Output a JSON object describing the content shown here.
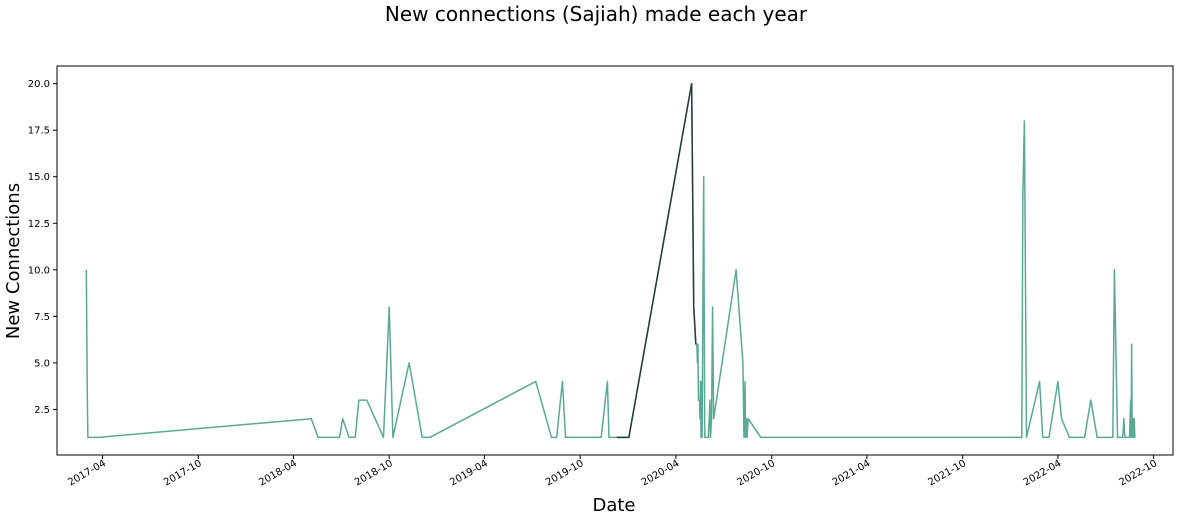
{
  "chart_data": {
    "type": "line",
    "title": "New connections (Sajiah) made each year",
    "xlabel": "Date",
    "ylabel": "New Connections",
    "x_range": [
      "2017-01-04",
      "2022-11-07"
    ],
    "ylim": [
      0.05,
      20.95
    ],
    "y_ticks": [
      2.5,
      5.0,
      7.5,
      10.0,
      12.5,
      15.0,
      17.5,
      20.0
    ],
    "y_tick_labels": [
      "2.5",
      "5.0",
      "7.5",
      "10.0",
      "12.5",
      "15.0",
      "17.5",
      "20.0"
    ],
    "x_ticks": [
      "2017-04-01",
      "2017-10-01",
      "2018-04-01",
      "2018-10-01",
      "2019-04-01",
      "2019-10-01",
      "2020-04-01",
      "2020-10-01",
      "2021-04-01",
      "2021-10-01",
      "2022-04-01",
      "2022-10-01"
    ],
    "x_tick_labels": [
      "2017-04",
      "2017-10",
      "2018-04",
      "2018-10",
      "2019-04",
      "2019-10",
      "2020-04",
      "2020-10",
      "2021-04",
      "2021-10",
      "2022-04",
      "2022-10"
    ],
    "grid": false,
    "line_color": "#5aa896",
    "highlight_color": "#283c37",
    "series": [
      {
        "points": [
          [
            "2017-03-01",
            10
          ],
          [
            "2017-03-03",
            3
          ],
          [
            "2017-03-04",
            1
          ],
          [
            "2017-03-25",
            1
          ],
          [
            "2018-05-05",
            2
          ],
          [
            "2018-05-18",
            1
          ],
          [
            "2018-06-28",
            1
          ],
          [
            "2018-07-04",
            2
          ],
          [
            "2018-07-16",
            1
          ],
          [
            "2018-07-28",
            1
          ],
          [
            "2018-08-04",
            3
          ],
          [
            "2018-08-19",
            3
          ],
          [
            "2018-09-20",
            1
          ],
          [
            "2018-10-01",
            8
          ],
          [
            "2018-10-08",
            1
          ],
          [
            "2018-11-08",
            5
          ],
          [
            "2018-12-03",
            1
          ],
          [
            "2018-12-18",
            1
          ],
          [
            "2019-07-08",
            4
          ],
          [
            "2019-08-07",
            1
          ],
          [
            "2019-08-17",
            1
          ],
          [
            "2019-08-28",
            4
          ],
          [
            "2019-09-03",
            1
          ],
          [
            "2019-11-10",
            1
          ],
          [
            "2019-11-22",
            4
          ],
          [
            "2019-11-25",
            1
          ],
          [
            "2019-12-10",
            1
          ],
          [
            "2020-01-02",
            1
          ],
          [
            "2020-05-01",
            20
          ],
          [
            "2020-05-05",
            8
          ],
          [
            "2020-05-09",
            6
          ],
          [
            "2020-05-11",
            6
          ],
          [
            "2020-05-12",
            5
          ],
          [
            "2020-05-13",
            6
          ],
          [
            "2020-05-14",
            3
          ],
          [
            "2020-05-16",
            3
          ],
          [
            "2020-05-17",
            2
          ],
          [
            "2020-05-18",
            4
          ],
          [
            "2020-05-19",
            1
          ],
          [
            "2020-05-20",
            4
          ],
          [
            "2020-05-21",
            1
          ],
          [
            "2020-05-24",
            15
          ],
          [
            "2020-05-26",
            1
          ],
          [
            "2020-06-02",
            1
          ],
          [
            "2020-06-05",
            3
          ],
          [
            "2020-06-06",
            1
          ],
          [
            "2020-06-08",
            2
          ],
          [
            "2020-06-10",
            8
          ],
          [
            "2020-06-12",
            2
          ],
          [
            "2020-07-25",
            10
          ],
          [
            "2020-08-07",
            5
          ],
          [
            "2020-08-09",
            1
          ],
          [
            "2020-08-11",
            4
          ],
          [
            "2020-08-12",
            1
          ],
          [
            "2020-08-14",
            2
          ],
          [
            "2020-08-15",
            1
          ],
          [
            "2020-08-17",
            2
          ],
          [
            "2020-09-10",
            1
          ],
          [
            "2022-01-22",
            1
          ],
          [
            "2022-01-24",
            14
          ],
          [
            "2022-01-27",
            18
          ],
          [
            "2022-01-31",
            1
          ],
          [
            "2022-02-25",
            4
          ],
          [
            "2022-03-03",
            1
          ],
          [
            "2022-03-15",
            1
          ],
          [
            "2022-04-01",
            4
          ],
          [
            "2022-04-08",
            2
          ],
          [
            "2022-04-23",
            1
          ],
          [
            "2022-05-22",
            1
          ],
          [
            "2022-06-03",
            3
          ],
          [
            "2022-06-15",
            1
          ],
          [
            "2022-07-15",
            1
          ],
          [
            "2022-07-18",
            10
          ],
          [
            "2022-07-24",
            1
          ],
          [
            "2022-08-03",
            1
          ],
          [
            "2022-08-05",
            2
          ],
          [
            "2022-08-07",
            1
          ],
          [
            "2022-08-16",
            1
          ],
          [
            "2022-08-18",
            3
          ],
          [
            "2022-08-19",
            1
          ],
          [
            "2022-08-20",
            6
          ],
          [
            "2022-08-21",
            1
          ],
          [
            "2022-08-23",
            2
          ],
          [
            "2022-08-24",
            1
          ],
          [
            "2022-08-25",
            2
          ],
          [
            "2022-08-26",
            1
          ],
          [
            "2022-08-27",
            1
          ]
        ]
      }
    ],
    "highlight_segment": [
      [
        "2019-12-10",
        1
      ],
      [
        "2020-01-02",
        1
      ],
      [
        "2020-05-01",
        20
      ],
      [
        "2020-05-05",
        8
      ],
      [
        "2020-05-09",
        6
      ]
    ]
  }
}
